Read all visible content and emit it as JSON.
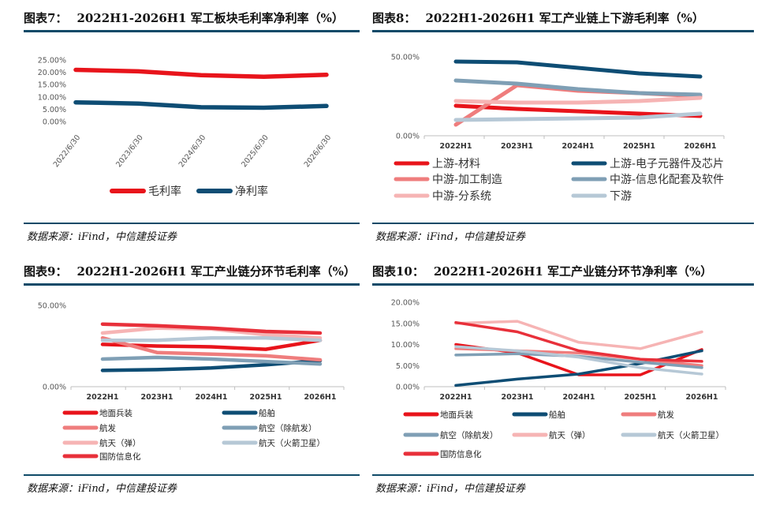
{
  "source_text": "数据来源：iFind，中信建投证券",
  "charts": [
    {
      "fig": "图表7：",
      "title": "2022H1-2026H1 军工板块毛利率净利率（%）",
      "chart_data": {
        "type": "line",
        "categories": [
          "2022/6/30",
          "2023/6/30",
          "2024/6/30",
          "2025/6/30",
          "2026/6/30"
        ],
        "ylim": [
          0,
          25
        ],
        "yticks": [
          "25.00%",
          "20.00%",
          "15.00%",
          "10.00%",
          "5.00%",
          "0.00%"
        ],
        "series": [
          {
            "name": "毛利率",
            "color": "#e8141b",
            "values": [
              21.0,
              20.4,
              18.8,
              18.2,
              19.0
            ]
          },
          {
            "name": "净利率",
            "color": "#0e4d74",
            "values": [
              7.8,
              7.3,
              5.8,
              5.6,
              6.3
            ]
          }
        ],
        "legend": "bottom"
      }
    },
    {
      "fig": "图表8：",
      "title": "2022H1-2026H1 军工产业链上下游毛利率（%）",
      "chart_data": {
        "type": "line",
        "categories": [
          "2022H1",
          "2023H1",
          "2024H1",
          "2025H1",
          "2026H1"
        ],
        "ylim": [
          0,
          50
        ],
        "yticks": [
          "50.00%",
          "0.00%"
        ],
        "series": [
          {
            "name": "上游-材料",
            "color": "#e8141b",
            "values": [
              19.0,
              17.0,
              15.5,
              14.0,
              12.5
            ]
          },
          {
            "name": "上游-电子元器件及芯片",
            "color": "#0e4d74",
            "values": [
              47.0,
              46.5,
              43.0,
              39.5,
              37.5
            ]
          },
          {
            "name": "中游-加工制造",
            "color": "#ef7d7d",
            "values": [
              7.0,
              32.0,
              28.5,
              27.0,
              25.0
            ]
          },
          {
            "name": "中游-信息化配套及软件",
            "color": "#7f9fb5",
            "values": [
              35.0,
              33.0,
              29.5,
              27.0,
              26.0
            ]
          },
          {
            "name": "中游-分系统",
            "color": "#f6b4b4",
            "values": [
              22.0,
              21.0,
              21.0,
              22.0,
              24.0
            ]
          },
          {
            "name": "下游",
            "color": "#b6c8d6",
            "values": [
              10.0,
              10.5,
              11.0,
              11.5,
              14.0
            ]
          }
        ],
        "legend": "bottom"
      }
    },
    {
      "fig": "图表9：",
      "title": "2022H1-2026H1 军工产业链分环节毛利率（%）",
      "chart_data": {
        "type": "line",
        "categories": [
          "2022H1",
          "2023H1",
          "2024H1",
          "2025H1",
          "2026H1"
        ],
        "ylim": [
          0,
          50
        ],
        "yticks": [
          "50.00%",
          "0.00%"
        ],
        "series": [
          {
            "name": "地面兵装",
            "color": "#e8141b",
            "values": [
              26.0,
              25.0,
              24.5,
              23.0,
              28.5
            ]
          },
          {
            "name": "船舶",
            "color": "#0e4d74",
            "values": [
              10.0,
              10.5,
              11.5,
              13.5,
              16.0
            ]
          },
          {
            "name": "航发",
            "color": "#ef7d7d",
            "values": [
              30.0,
              21.0,
              20.0,
              19.0,
              16.5
            ]
          },
          {
            "name": "航空（除航发）",
            "color": "#7f9fb5",
            "values": [
              17.0,
              18.0,
              17.0,
              15.5,
              14.0
            ]
          },
          {
            "name": "航天（弹）",
            "color": "#f6b4b4",
            "values": [
              33.0,
              36.0,
              35.5,
              32.0,
              30.0
            ]
          },
          {
            "name": "航天（火箭卫星）",
            "color": "#b6c8d6",
            "values": [
              28.5,
              28.5,
              30.0,
              30.0,
              28.5
            ]
          },
          {
            "name": "国防信息化",
            "color": "#e8303a",
            "values": [
              38.5,
              37.5,
              36.0,
              34.0,
              33.0
            ]
          }
        ],
        "legend": "bottom"
      }
    },
    {
      "fig": "图表10：",
      "title": "2022H1-2026H1 军工产业链分环节净利率（%）",
      "chart_data": {
        "type": "line",
        "categories": [
          "2022H1",
          "2023H1",
          "2024H1",
          "2025H1",
          "2026H1"
        ],
        "ylim": [
          0,
          20
        ],
        "yticks": [
          "20.00%",
          "15.00%",
          "10.00%",
          "5.00%",
          "0.00%"
        ],
        "series": [
          {
            "name": "地面兵装",
            "color": "#e8141b",
            "values": [
              10.0,
              8.0,
              2.8,
              2.8,
              8.8
            ]
          },
          {
            "name": "船舶",
            "color": "#0e4d74",
            "values": [
              0.3,
              1.8,
              3.0,
              5.5,
              8.5
            ]
          },
          {
            "name": "航发",
            "color": "#ef7d7d",
            "values": [
              9.0,
              8.5,
              8.0,
              6.5,
              5.0
            ]
          },
          {
            "name": "航空（除航发）",
            "color": "#7f9fb5",
            "values": [
              7.5,
              7.8,
              7.2,
              5.8,
              4.5
            ]
          },
          {
            "name": "航天（弹）",
            "color": "#f6b4b4",
            "values": [
              15.0,
              15.5,
              10.5,
              9.0,
              13.0
            ]
          },
          {
            "name": "航天（火箭卫星）",
            "color": "#b6c8d6",
            "values": [
              9.5,
              8.5,
              7.0,
              4.5,
              3.0
            ]
          },
          {
            "name": "国防信息化",
            "color": "#e8303a",
            "values": [
              15.2,
              13.0,
              8.5,
              6.5,
              6.0
            ]
          }
        ],
        "legend": "bottom"
      }
    }
  ]
}
